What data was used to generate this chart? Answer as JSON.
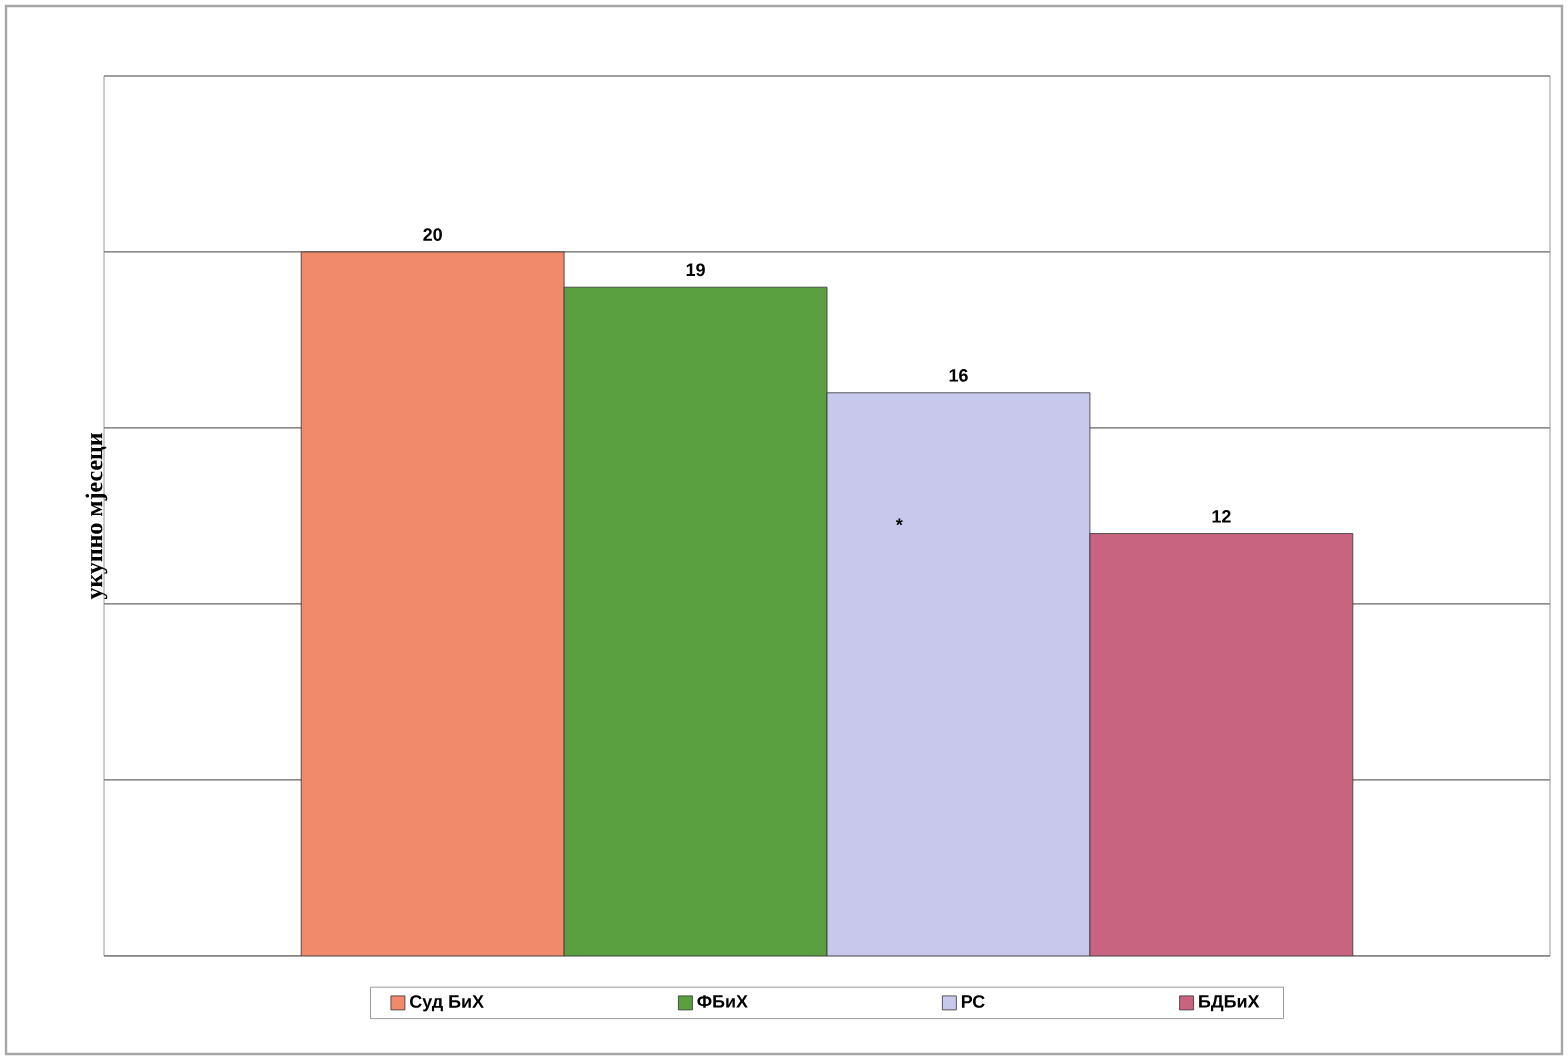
{
  "chart_data": {
    "type": "bar",
    "ylabel": "укупно мјесеци",
    "categories": [
      null
    ],
    "series": [
      {
        "name": "Суд БиХ",
        "color": "#f08a6a",
        "values": [
          20
        ]
      },
      {
        "name": "ФБиХ",
        "color": "#5aa040",
        "values": [
          19
        ]
      },
      {
        "name": "РС",
        "color": "#c8c8ec",
        "values": [
          16
        ]
      },
      {
        "name": "БДБиХ",
        "color": "#c86480",
        "values": [
          12
        ]
      }
    ],
    "ylim": [
      0,
      25
    ],
    "yticks": [
      {
        "value": 0,
        "label": null
      },
      {
        "value": 5,
        "label": null
      },
      {
        "value": 10,
        "label": null
      },
      {
        "value": 15,
        "label": null
      },
      {
        "value": 20,
        "label": null
      },
      {
        "value": 25,
        "label": null
      }
    ],
    "grid": "y",
    "legend": "bottom",
    "data_labels": true,
    "annotations": [
      "*"
    ]
  }
}
